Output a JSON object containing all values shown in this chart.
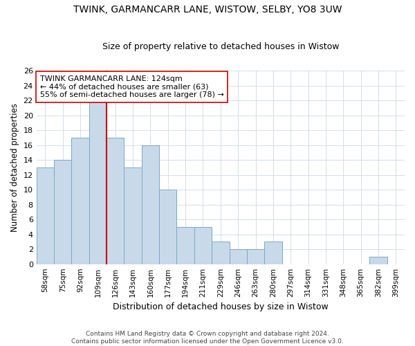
{
  "title": "TWINK, GARMANCARR LANE, WISTOW, SELBY, YO8 3UW",
  "subtitle": "Size of property relative to detached houses in Wistow",
  "xlabel": "Distribution of detached houses by size in Wistow",
  "ylabel": "Number of detached properties",
  "categories": [
    "58sqm",
    "75sqm",
    "92sqm",
    "109sqm",
    "126sqm",
    "143sqm",
    "160sqm",
    "177sqm",
    "194sqm",
    "211sqm",
    "229sqm",
    "246sqm",
    "263sqm",
    "280sqm",
    "297sqm",
    "314sqm",
    "331sqm",
    "348sqm",
    "365sqm",
    "382sqm",
    "399sqm"
  ],
  "values": [
    13,
    14,
    17,
    22,
    17,
    13,
    16,
    10,
    5,
    5,
    3,
    2,
    2,
    3,
    0,
    0,
    0,
    0,
    0,
    1,
    0
  ],
  "bar_color": "#c8daea",
  "bar_edge_color": "#7ba7c4",
  "reference_line_x": 4.5,
  "reference_line_color": "#cc0000",
  "ylim": [
    0,
    26
  ],
  "yticks": [
    0,
    2,
    4,
    6,
    8,
    10,
    12,
    14,
    16,
    18,
    20,
    22,
    24,
    26
  ],
  "annotation_text": "TWINK GARMANCARR LANE: 124sqm\n← 44% of detached houses are smaller (63)\n55% of semi-detached houses are larger (78) →",
  "annotation_box_facecolor": "#ffffff",
  "annotation_box_edgecolor": "#cc0000",
  "footer_line1": "Contains HM Land Registry data © Crown copyright and database right 2024.",
  "footer_line2": "Contains public sector information licensed under the Open Government Licence v3.0.",
  "background_color": "#ffffff",
  "plot_bg_color": "#ffffff",
  "grid_color": "#d0d8e0"
}
